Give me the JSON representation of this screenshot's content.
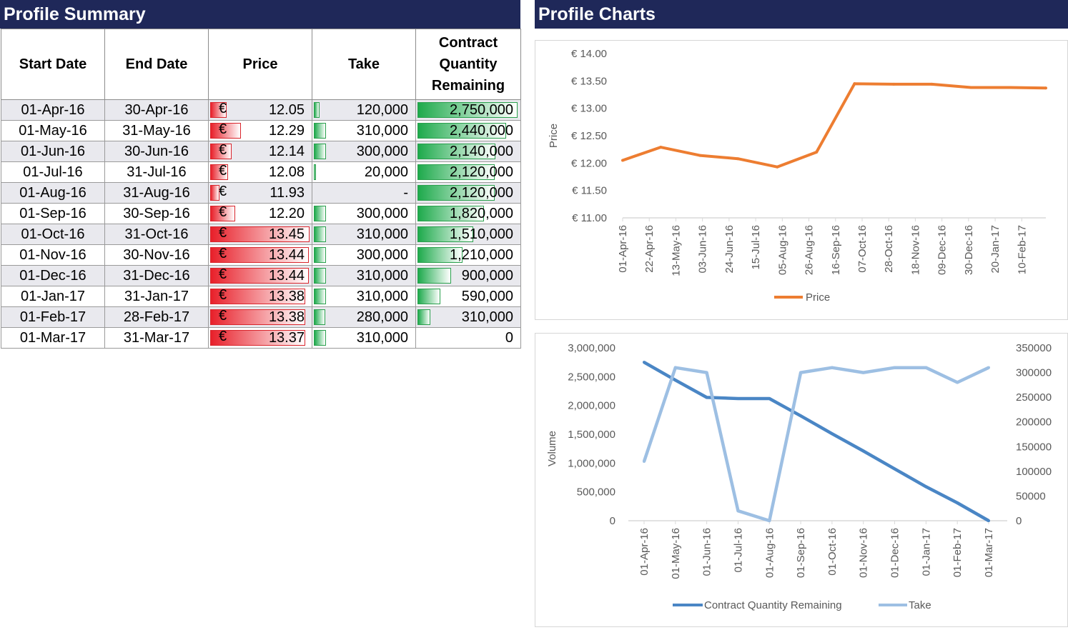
{
  "summary": {
    "title": "Profile Summary",
    "headers": {
      "start": "Start Date",
      "end": "End Date",
      "price": "Price",
      "take": "Take",
      "cqr": [
        "Contract",
        "Quantity",
        "Remaining"
      ]
    },
    "currency_symbol": "€",
    "rows": [
      {
        "start": "01-Apr-16",
        "end": "30-Apr-16",
        "price": "12.05",
        "price_value": 12.05,
        "take": "120,000",
        "take_value": 120000,
        "cqr": "2,750,000",
        "cqr_value": 2750000
      },
      {
        "start": "01-May-16",
        "end": "31-May-16",
        "price": "12.29",
        "price_value": 12.29,
        "take": "310,000",
        "take_value": 310000,
        "cqr": "2,440,000",
        "cqr_value": 2440000
      },
      {
        "start": "01-Jun-16",
        "end": "30-Jun-16",
        "price": "12.14",
        "price_value": 12.14,
        "take": "300,000",
        "take_value": 300000,
        "cqr": "2,140,000",
        "cqr_value": 2140000
      },
      {
        "start": "01-Jul-16",
        "end": "31-Jul-16",
        "price": "12.08",
        "price_value": 12.08,
        "take": "20,000",
        "take_value": 20000,
        "cqr": "2,120,000",
        "cqr_value": 2120000
      },
      {
        "start": "01-Aug-16",
        "end": "31-Aug-16",
        "price": "11.93",
        "price_value": 11.93,
        "take": "-",
        "take_value": 0,
        "cqr": "2,120,000",
        "cqr_value": 2120000
      },
      {
        "start": "01-Sep-16",
        "end": "30-Sep-16",
        "price": "12.20",
        "price_value": 12.2,
        "take": "300,000",
        "take_value": 300000,
        "cqr": "1,820,000",
        "cqr_value": 1820000
      },
      {
        "start": "01-Oct-16",
        "end": "31-Oct-16",
        "price": "13.45",
        "price_value": 13.45,
        "take": "310,000",
        "take_value": 310000,
        "cqr": "1,510,000",
        "cqr_value": 1510000
      },
      {
        "start": "01-Nov-16",
        "end": "30-Nov-16",
        "price": "13.44",
        "price_value": 13.44,
        "take": "300,000",
        "take_value": 300000,
        "cqr": "1,210,000",
        "cqr_value": 1210000
      },
      {
        "start": "01-Dec-16",
        "end": "31-Dec-16",
        "price": "13.44",
        "price_value": 13.44,
        "take": "310,000",
        "take_value": 310000,
        "cqr": "900,000",
        "cqr_value": 900000
      },
      {
        "start": "01-Jan-17",
        "end": "31-Jan-17",
        "price": "13.38",
        "price_value": 13.38,
        "take": "310,000",
        "take_value": 310000,
        "cqr": "590,000",
        "cqr_value": 590000
      },
      {
        "start": "01-Feb-17",
        "end": "28-Feb-17",
        "price": "13.38",
        "price_value": 13.38,
        "take": "280,000",
        "take_value": 280000,
        "cqr": "310,000",
        "cqr_value": 310000
      },
      {
        "start": "01-Mar-17",
        "end": "31-Mar-17",
        "price": "13.37",
        "price_value": 13.37,
        "take": "310,000",
        "take_value": 310000,
        "cqr": "0",
        "cqr_value": 0
      }
    ],
    "colors": {
      "price_bar": "#e8202a",
      "take_bar": "#1eaa4c",
      "header_band": "#1f2859"
    }
  },
  "charts_title": "Profile Charts",
  "chart_data": [
    {
      "type": "line",
      "title": "",
      "xlabel": "",
      "ylabel": "Price",
      "ylim": [
        11.0,
        14.0
      ],
      "yticks": [
        "€ 11.00",
        "€ 11.50",
        "€ 12.00",
        "€ 12.50",
        "€ 13.00",
        "€ 13.50",
        "€ 14.00"
      ],
      "x_ticks": [
        "01-Apr-16",
        "22-Apr-16",
        "13-May-16",
        "03-Jun-16",
        "24-Jun-16",
        "15-Jul-16",
        "05-Aug-16",
        "26-Aug-16",
        "16-Sep-16",
        "07-Oct-16",
        "28-Oct-16",
        "18-Nov-16",
        "09-Dec-16",
        "30-Dec-16",
        "20-Jan-17",
        "10-Feb-17"
      ],
      "x": [
        "2016-04-01",
        "2016-05-01",
        "2016-06-01",
        "2016-07-01",
        "2016-08-01",
        "2016-09-01",
        "2016-10-01",
        "2016-11-01",
        "2016-12-01",
        "2017-01-01",
        "2017-02-01",
        "2017-03-01"
      ],
      "series": [
        {
          "name": "Price",
          "color": "#ed7d31",
          "values": [
            12.05,
            12.29,
            12.14,
            12.08,
            11.93,
            12.2,
            13.45,
            13.44,
            13.44,
            13.38,
            13.38,
            13.37
          ]
        }
      ],
      "legend": "bottom",
      "grid": false
    },
    {
      "type": "line",
      "title": "",
      "xlabel": "",
      "ylabel": "Volume",
      "ylim": [
        0,
        3000000
      ],
      "y2lim": [
        0,
        350000
      ],
      "yticks": [
        "0",
        "500,000",
        "1,000,000",
        "1,500,000",
        "2,000,000",
        "2,500,000",
        "3,000,000"
      ],
      "y2ticks": [
        "0",
        "50000",
        "100000",
        "150000",
        "200000",
        "250000",
        "300000",
        "350000"
      ],
      "categories": [
        "01-Apr-16",
        "01-May-16",
        "01-Jun-16",
        "01-Jul-16",
        "01-Aug-16",
        "01-Sep-16",
        "01-Oct-16",
        "01-Nov-16",
        "01-Dec-16",
        "01-Jan-17",
        "01-Feb-17",
        "01-Mar-17"
      ],
      "series": [
        {
          "name": "Contract Quantity Remaining",
          "axis": "left",
          "color": "#4a86c5",
          "values": [
            2750000,
            2440000,
            2140000,
            2120000,
            2120000,
            1820000,
            1510000,
            1210000,
            900000,
            590000,
            310000,
            0
          ]
        },
        {
          "name": "Take",
          "axis": "right",
          "color": "#9dbfe3",
          "values": [
            120000,
            310000,
            300000,
            20000,
            0,
            300000,
            310000,
            300000,
            310000,
            310000,
            280000,
            310000
          ]
        }
      ],
      "legend": "bottom",
      "grid": false
    }
  ]
}
